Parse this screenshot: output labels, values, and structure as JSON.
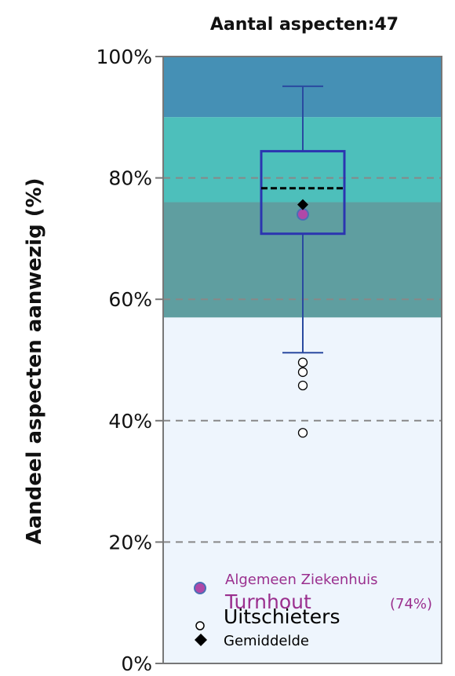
{
  "chart_data": {
    "type": "box",
    "title": "Aantal aspecten:47",
    "ylabel": "Aandeel aspecten aanwezig (%)",
    "ylim": [
      0,
      100
    ],
    "yticks": [
      "0%",
      "20%",
      "40%",
      "60%",
      "80%",
      "100%"
    ],
    "grid": "horizontal dashed",
    "background_bands": [
      {
        "from": 90,
        "to": 100,
        "color": "#4590b5"
      },
      {
        "from": 76,
        "to": 90,
        "color": "#4dbfbb"
      },
      {
        "from": 57,
        "to": 76,
        "color": "#5f9ea0"
      },
      {
        "from": 0,
        "to": 57,
        "color": "#eef5fd"
      }
    ],
    "box": {
      "whisker_low": 51.2,
      "q1": 70.8,
      "median": 78.3,
      "q3": 84.4,
      "whisker_high": 95.1,
      "mean": 75.6,
      "outliers": [
        49.6,
        48.0,
        45.8,
        38.0
      ]
    },
    "highlight": {
      "label": "Algemeen Ziekenhuis Turnhout",
      "value": 74
    },
    "legend": {
      "placement": "bottom",
      "hospital_line1": "Algemeen Ziekenhuis",
      "hospital_line2": "Turnhout",
      "hospital_value": "(74%)",
      "outliers_label": "Uitschieters",
      "mean_label": "Gemiddelde"
    },
    "colors": {
      "box": "#2b35b0",
      "whisker": "#2a4aa0",
      "median": "#000000",
      "highlight_fill": "#b048a8",
      "highlight_stroke": "#4a6fb5",
      "hospital_text": "#9a2f8e",
      "grid": "#888888",
      "frame": "#777777"
    }
  }
}
